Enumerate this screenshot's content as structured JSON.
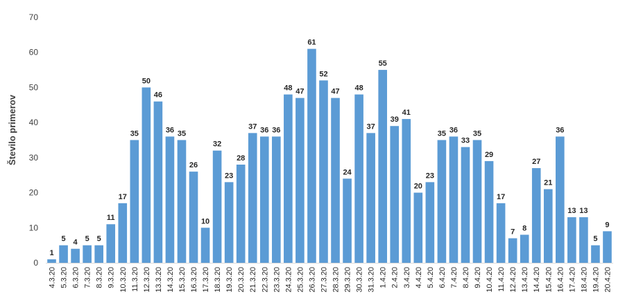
{
  "chart_data": {
    "type": "bar",
    "ylabel": "Število primerov",
    "ylim": [
      0,
      70
    ],
    "yticks": [
      0,
      10,
      20,
      30,
      40,
      50,
      60,
      70
    ],
    "grid": false,
    "bar_color": "#5B9BD5",
    "categories": [
      "4.3.20",
      "5.3.20",
      "6.3.20",
      "7.3.20",
      "8.3.20",
      "9.3.20",
      "10.3.20",
      "11.3.20",
      "12.3.20",
      "13.3.20",
      "14.3.20",
      "15.3.20",
      "16.3.20",
      "17.3.20",
      "18.3.20",
      "19.3.20",
      "20.3.20",
      "21.3.20",
      "22.3.20",
      "23.3.20",
      "24.3.20",
      "25.3.20",
      "26.3.20",
      "27.3.20",
      "28.3.20",
      "29.3.20",
      "30.3.20",
      "31.3.20",
      "1.4.20",
      "2.4.20",
      "3.4.20",
      "4.4.20",
      "5.4.20",
      "6.4.20",
      "7.4.20",
      "8.4.20",
      "9.4.20",
      "10.4.20",
      "11.4.20",
      "12.4.20",
      "13.4.20",
      "14.4.20",
      "15.4.20",
      "16.4.20",
      "17.4.20",
      "18.4.20",
      "19.4.20",
      "20.4.20"
    ],
    "values": [
      1,
      5,
      4,
      5,
      5,
      11,
      17,
      35,
      50,
      46,
      36,
      35,
      26,
      10,
      32,
      23,
      28,
      37,
      36,
      36,
      48,
      47,
      61,
      52,
      47,
      24,
      48,
      37,
      55,
      39,
      41,
      20,
      23,
      35,
      36,
      33,
      35,
      29,
      17,
      7,
      8,
      27,
      21,
      36,
      13,
      13,
      5,
      9
    ]
  }
}
